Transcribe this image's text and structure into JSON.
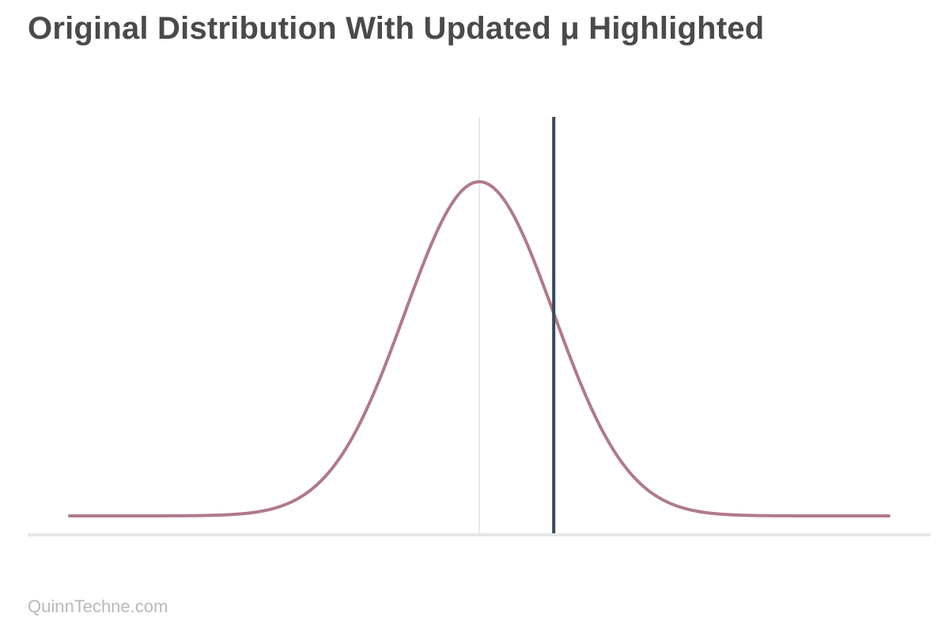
{
  "chart_data": {
    "type": "line",
    "title": "Original Distribution With Updated μ Highlighted",
    "subtitle": "",
    "xlabel": "",
    "ylabel": "",
    "distribution": "normal",
    "mean": 0,
    "std": 1,
    "x_range": [
      -5.5,
      5.5
    ],
    "samples": 240,
    "reference_lines": [
      {
        "x": 0
      },
      {
        "x": 1
      }
    ],
    "grid": false,
    "legend": "none",
    "colors": {
      "curve": "#b07a8b",
      "highlight_line": "#34495a",
      "mean_line": "#d3d3d3",
      "baseline": "#e6e6e6",
      "title": "#4a4a4a",
      "footer": "#b9b9b9"
    }
  },
  "footer": {
    "source": "QuinnTechne.com"
  }
}
